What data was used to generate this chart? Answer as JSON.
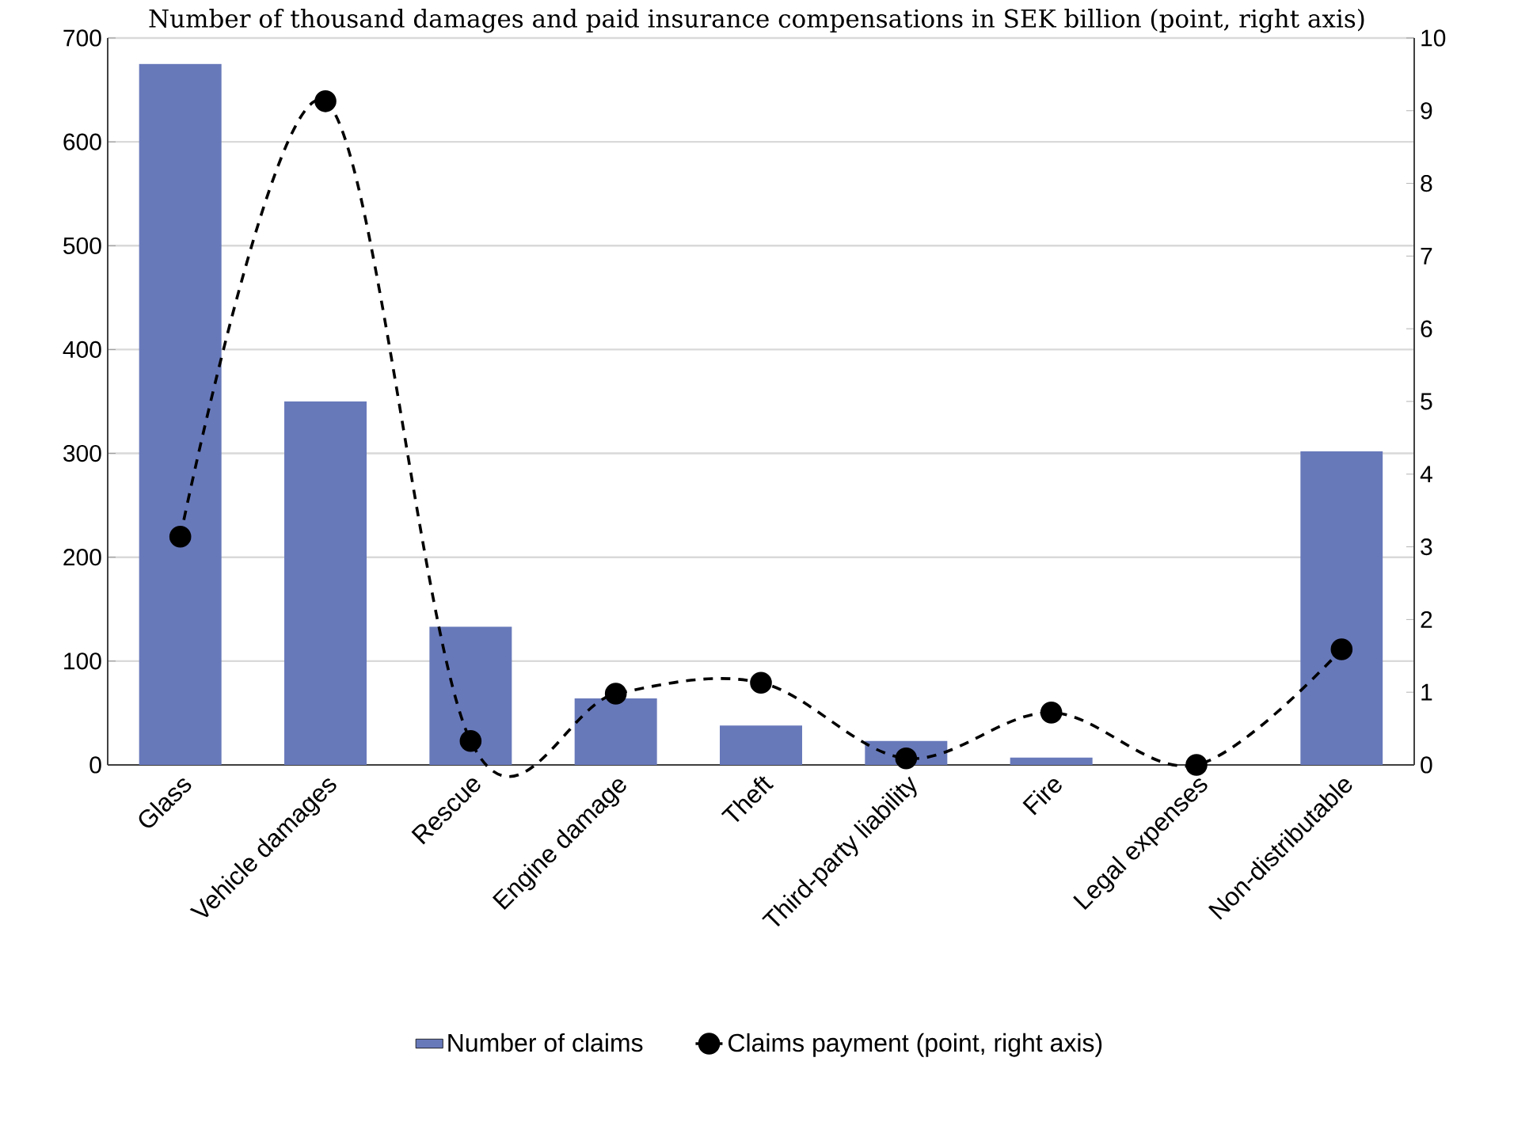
{
  "chart_data": {
    "type": "bar",
    "title": "Number of thousand damages and paid insurance compensations in SEK billion (point, right axis)",
    "categories": [
      "Glass",
      "Vehicle damages",
      "Rescue",
      "Engine damage",
      "Theft",
      "Third-party liability",
      "Fire",
      "Legal expenses",
      "Non-distributable"
    ],
    "series": [
      {
        "name": "Number of claims",
        "color": "#6879ba",
        "values": [
          675,
          350,
          133,
          64,
          38,
          23,
          7,
          null,
          302
        ]
      },
      {
        "name": "Claims payment (point, right axis)",
        "type": "line",
        "axis": "y2",
        "color": "#000000",
        "marker": "circle",
        "line_style": "dashed",
        "values": [
          3.14,
          9.13,
          0.33,
          0.98,
          1.13,
          0.09,
          0.72,
          0.0,
          1.59
        ]
      }
    ],
    "ylim": [
      0,
      700
    ],
    "yticks": [
      0,
      100,
      200,
      300,
      400,
      500,
      600,
      700
    ],
    "y2lim": [
      0,
      10
    ],
    "y2ticks": [
      0,
      1,
      2,
      3,
      4,
      5,
      6,
      7,
      8,
      9,
      10
    ],
    "grid": "y",
    "legend": "bottom"
  }
}
